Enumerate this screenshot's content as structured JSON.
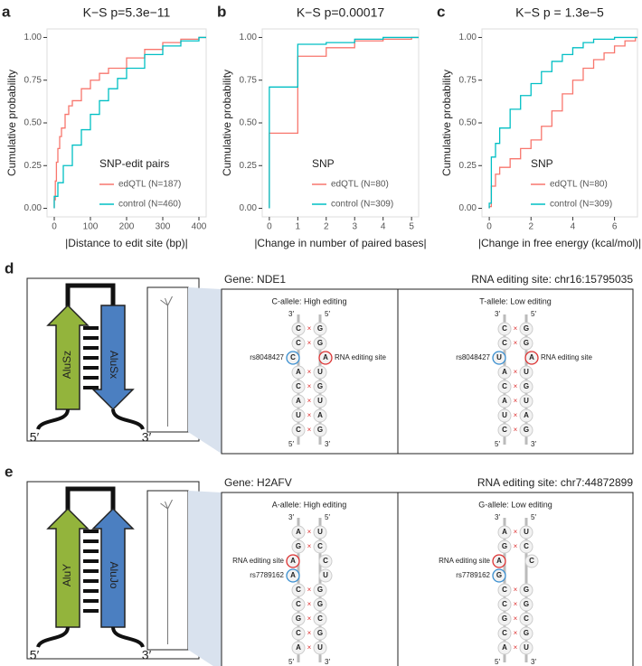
{
  "chart_data": [
    {
      "type": "line",
      "step": "hv",
      "panel": "a",
      "title": "K−S p=5.3e−11",
      "xlabel": "|Distance to edit site (bp)|",
      "ylabel": "Cumulative probability",
      "xlim": [
        -20,
        420
      ],
      "xticks": [
        0,
        100,
        200,
        300,
        400
      ],
      "ylim": [
        -0.05,
        1.05
      ],
      "yticks": [
        {
          "value": 0,
          "label": "0.00"
        },
        {
          "value": 0.25,
          "label": "0.25"
        },
        {
          "value": 0.5,
          "label": "0.50"
        },
        {
          "value": 0.75,
          "label": "0.75"
        },
        {
          "value": 1,
          "label": "1.00"
        }
      ],
      "legend_title": "SNP-edit pairs",
      "legend": "bottom-right",
      "grid": false,
      "series": [
        {
          "name": "edQTL (N=187)",
          "color": "#F8766D",
          "x": [
            0,
            3,
            6,
            10,
            15,
            20,
            30,
            40,
            50,
            75,
            100,
            125,
            150,
            200,
            250,
            300,
            350,
            400
          ],
          "values": [
            0.05,
            0.16,
            0.27,
            0.35,
            0.42,
            0.47,
            0.55,
            0.6,
            0.63,
            0.7,
            0.75,
            0.79,
            0.82,
            0.88,
            0.93,
            0.97,
            0.99,
            1.0
          ]
        },
        {
          "name": "control (N=460)",
          "color": "#00BFC4",
          "x": [
            0,
            10,
            25,
            50,
            75,
            100,
            125,
            150,
            175,
            200,
            250,
            300,
            350,
            400
          ],
          "values": [
            0.07,
            0.15,
            0.25,
            0.37,
            0.46,
            0.55,
            0.63,
            0.7,
            0.76,
            0.82,
            0.9,
            0.95,
            0.98,
            1.0
          ]
        }
      ]
    },
    {
      "type": "line",
      "step": "hv",
      "panel": "b",
      "title": "K−S p=0.00017",
      "xlabel": "|Change in number of paired bases|",
      "ylabel": "Cumulative probability",
      "xlim": [
        -0.25,
        5.25
      ],
      "xticks": [
        0,
        1,
        2,
        3,
        4,
        5
      ],
      "ylim": [
        -0.05,
        1.05
      ],
      "yticks": [
        {
          "value": 0,
          "label": "0.00"
        },
        {
          "value": 0.25,
          "label": "0.25"
        },
        {
          "value": 0.5,
          "label": "0.50"
        },
        {
          "value": 0.75,
          "label": "0.75"
        },
        {
          "value": 1,
          "label": "1.00"
        }
      ],
      "legend_title": "SNP",
      "legend": "bottom-right",
      "grid": false,
      "series": [
        {
          "name": "edQTL (N=80)",
          "color": "#F8766D",
          "x": [
            0,
            1,
            2,
            3,
            4,
            5
          ],
          "values": [
            0.44,
            0.89,
            0.94,
            0.98,
            0.99,
            1.0
          ]
        },
        {
          "name": "control (N=309)",
          "color": "#00BFC4",
          "x": [
            0,
            1,
            2,
            3,
            4,
            5
          ],
          "values": [
            0.71,
            0.96,
            0.97,
            0.99,
            1.0,
            1.0
          ]
        }
      ]
    },
    {
      "type": "line",
      "step": "hv",
      "panel": "c",
      "title": "K−S p = 1.3e−5",
      "xlabel": "|Change in free energy (kcal/mol)|",
      "ylabel": "Cumulative probability",
      "xlim": [
        -0.35,
        7.1
      ],
      "xticks": [
        0,
        2,
        4,
        6
      ],
      "ylim": [
        -0.05,
        1.05
      ],
      "yticks": [
        {
          "value": 0,
          "label": "0.00"
        },
        {
          "value": 0.25,
          "label": "0.25"
        },
        {
          "value": 0.5,
          "label": "0.50"
        },
        {
          "value": 0.75,
          "label": "0.75"
        },
        {
          "value": 1,
          "label": "1.00"
        }
      ],
      "legend_title": "SNP",
      "legend": "bottom-right",
      "grid": false,
      "series": [
        {
          "name": "edQTL (N=80)",
          "color": "#F8766D",
          "x": [
            0,
            0.1,
            0.3,
            0.5,
            1,
            1.5,
            2,
            2.5,
            3,
            3.5,
            4,
            4.5,
            5,
            5.5,
            6,
            6.5,
            7
          ],
          "values": [
            0.01,
            0.13,
            0.2,
            0.24,
            0.29,
            0.35,
            0.4,
            0.48,
            0.57,
            0.67,
            0.75,
            0.82,
            0.87,
            0.91,
            0.95,
            0.98,
            1.0
          ]
        },
        {
          "name": "control (N=309)",
          "color": "#00BFC4",
          "x": [
            0,
            0.1,
            0.3,
            0.5,
            1,
            1.5,
            2,
            2.5,
            3,
            3.5,
            4,
            4.5,
            5,
            6,
            7
          ],
          "values": [
            0.03,
            0.3,
            0.38,
            0.47,
            0.58,
            0.66,
            0.73,
            0.8,
            0.86,
            0.9,
            0.94,
            0.97,
            0.99,
            1.0,
            1.0
          ]
        }
      ]
    }
  ],
  "panels": [
    {
      "letter": "d",
      "alu_left": "AluSz",
      "alu_right": "AluSx",
      "right_arrow": "down",
      "end_left": "5′",
      "end_right": "3′",
      "gene": "Gene: NDE1",
      "site": "RNA editing site: chr16:15795035",
      "alleles": [
        {
          "title": "C-allele: High editing",
          "top": [
            "3′",
            "5′"
          ],
          "bottom": [
            "5′",
            "3′"
          ],
          "rows": [
            [
              "C",
              "G"
            ],
            [
              "C",
              "G"
            ],
            [
              {
                "base": "C",
                "kind": "snp",
                "label": "rs8048427"
              },
              {
                "base": "A",
                "kind": "edit",
                "label": "RNA editing site"
              }
            ],
            [
              "A",
              "U"
            ],
            [
              "C",
              "G"
            ],
            [
              "A",
              "U"
            ],
            [
              "U",
              "A"
            ],
            [
              "C",
              "G"
            ]
          ]
        },
        {
          "title": "T-allele: Low editing",
          "top": [
            "3′",
            "5′"
          ],
          "bottom": [
            "5′",
            "3′"
          ],
          "rows": [
            [
              "C",
              "G"
            ],
            [
              "C",
              "G"
            ],
            [
              {
                "base": "U",
                "kind": "snp",
                "label": "rs8048427"
              },
              {
                "base": "A",
                "kind": "edit",
                "label": "RNA editing site"
              }
            ],
            [
              "A",
              "U"
            ],
            [
              "C",
              "G"
            ],
            [
              "A",
              "U"
            ],
            [
              "U",
              "A"
            ],
            [
              "C",
              "G"
            ]
          ]
        }
      ]
    },
    {
      "letter": "e",
      "alu_left": "AluY",
      "alu_right": "AluJo",
      "right_arrow": "up",
      "end_left": "5′",
      "end_right": "3′",
      "gene": "Gene: H2AFV",
      "site": "RNA editing site: chr7:44872899",
      "alleles": [
        {
          "title": "A-allele: High editing",
          "top": [
            "3′",
            "5′"
          ],
          "bottom": [
            "5′",
            "3′"
          ],
          "rows": [
            [
              "A",
              "U"
            ],
            [
              "G",
              "C"
            ],
            [
              {
                "base": "A",
                "kind": "edit",
                "label": "RNA editing site"
              },
              "C"
            ],
            [
              {
                "base": "A",
                "kind": "snp",
                "label": "rs7789162"
              },
              "U"
            ],
            [
              "C",
              "G"
            ],
            [
              "C",
              "G"
            ],
            [
              "G",
              "C"
            ],
            [
              "C",
              "G"
            ],
            [
              "A",
              "U"
            ]
          ]
        },
        {
          "title": "G-allele: Low editing",
          "top": [
            "3′",
            "5′"
          ],
          "bottom": [
            "5′",
            "3′"
          ],
          "rows": [
            [
              "A",
              "U"
            ],
            [
              "G",
              "C"
            ],
            [
              {
                "base": "A",
                "kind": "edit",
                "label": "RNA editing site"
              },
              "C"
            ],
            [
              {
                "base": "G",
                "kind": "snp",
                "label": "rs7789162"
              }
            ],
            [
              "C",
              "G"
            ],
            [
              "C",
              "G"
            ],
            [
              "G",
              "C"
            ],
            [
              "C",
              "G"
            ],
            [
              "A",
              "U"
            ]
          ]
        }
      ]
    }
  ]
}
